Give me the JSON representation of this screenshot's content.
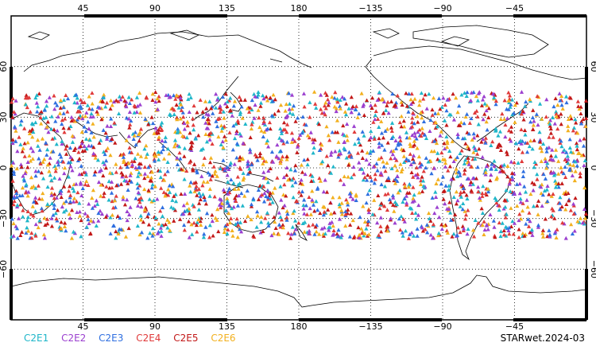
{
  "map": {
    "top_ticks": [
      "45",
      "90",
      "135",
      "180",
      "−135",
      "−90",
      "−45"
    ],
    "bottom_ticks": [
      "45",
      "90",
      "135",
      "180",
      "−135",
      "−90",
      "−45"
    ],
    "left_ticks": [
      "60",
      "30",
      "0",
      "−30",
      "−60"
    ],
    "right_ticks": [
      "60",
      "30",
      "0",
      "−30",
      "−60"
    ],
    "lat_range": [
      -90,
      90
    ],
    "lon_center": 180,
    "grid": "dotted",
    "marker": "triangle",
    "obs_lat_band": [
      -42,
      45
    ]
  },
  "legend": [
    {
      "label": "C2E1",
      "color": "#1fb6c9"
    },
    {
      "label": "C2E2",
      "color": "#9b3fcf"
    },
    {
      "label": "C2E3",
      "color": "#2f6fe0"
    },
    {
      "label": "C2E4",
      "color": "#e03a3a"
    },
    {
      "label": "C2E5",
      "color": "#c21818"
    },
    {
      "label": "C2E6",
      "color": "#f2b01e"
    }
  ],
  "stamp": "STARwet.2024-03"
}
